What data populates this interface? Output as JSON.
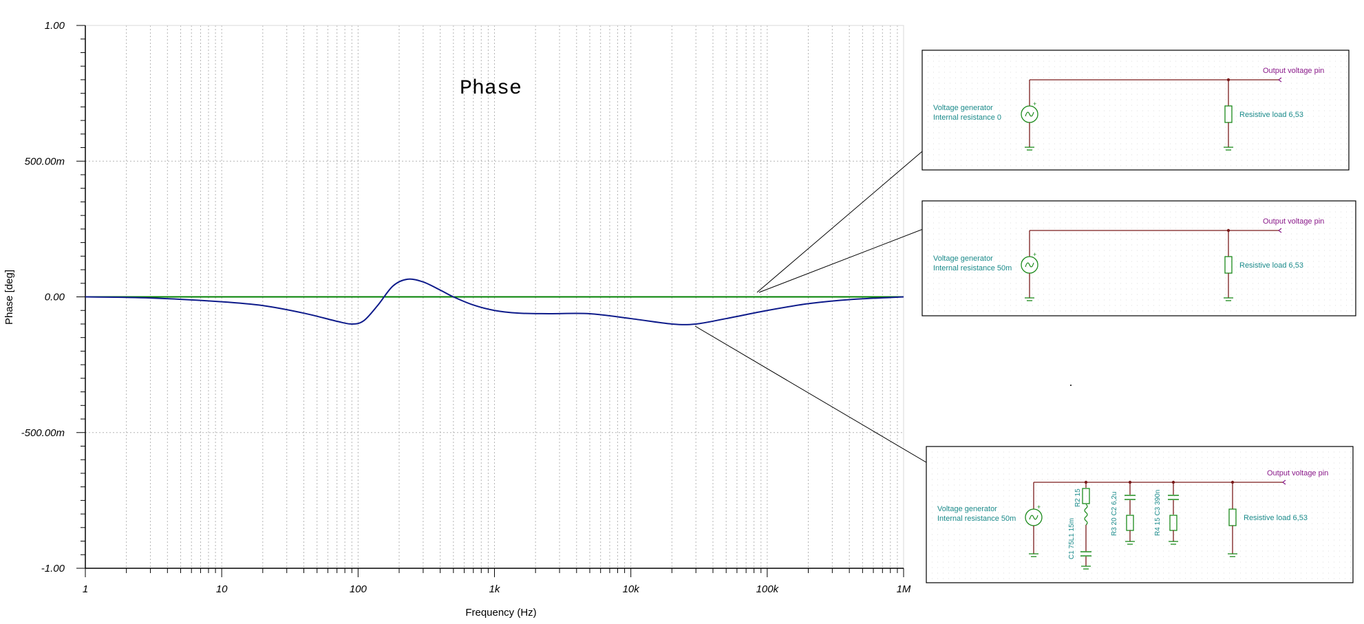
{
  "chart_data": {
    "type": "line",
    "title": "Phase",
    "xlabel": "Frequency (Hz)",
    "ylabel": "Phase [deg]",
    "x_scale": "log",
    "xlim": [
      1,
      1000000
    ],
    "ylim": [
      -1.0,
      1.0
    ],
    "grid": true,
    "x_tick_labels": [
      {
        "value": 1,
        "label": "1"
      },
      {
        "value": 10,
        "label": "10"
      },
      {
        "value": 100,
        "label": "100"
      },
      {
        "value": 1000,
        "label": "1k"
      },
      {
        "value": 10000,
        "label": "10k"
      },
      {
        "value": 100000,
        "label": "100k"
      },
      {
        "value": 1000000,
        "label": "1M"
      }
    ],
    "y_tick_labels": [
      {
        "value": 1.0,
        "label": "1.00"
      },
      {
        "value": 0.5,
        "label": "500.00m"
      },
      {
        "value": 0.0,
        "label": "0.00"
      },
      {
        "value": -0.5,
        "label": "-500.00m"
      },
      {
        "value": -1.0,
        "label": "-1.00"
      }
    ],
    "series": [
      {
        "color": "#008000",
        "x": [
          1,
          1000000
        ],
        "y": [
          0.0,
          0.0
        ]
      },
      {
        "color": "#0d1a8a",
        "x": [
          1,
          3,
          10,
          20,
          40,
          70,
          90,
          110,
          140,
          180,
          230,
          300,
          400,
          500,
          700,
          1000,
          1500,
          2500,
          5000,
          10000,
          20000,
          30000,
          50000,
          100000,
          200000,
          400000,
          1000000
        ],
        "y": [
          0.0,
          -0.004,
          -0.018,
          -0.032,
          -0.06,
          -0.09,
          -0.1,
          -0.088,
          -0.03,
          0.04,
          0.065,
          0.055,
          0.025,
          0.0,
          -0.03,
          -0.05,
          -0.06,
          -0.062,
          -0.062,
          -0.08,
          -0.1,
          -0.1,
          -0.08,
          -0.05,
          -0.025,
          -0.01,
          0.0
        ]
      }
    ]
  },
  "colors": {
    "grid": "#b4b4b4",
    "wire": "#7a1a1a",
    "component": "#1a8a1a",
    "ground": "#1a8a1a",
    "label": "#1a8a8a",
    "pin_label": "#8a1a8a",
    "leader": "#000000"
  },
  "schematics": [
    {
      "gen_label_1": "Voltage generator",
      "gen_label_2": "Internal resistance 0",
      "pin_label": "Output voltage pin",
      "load_label": "Resistive load 6,53"
    },
    {
      "gen_label_1": "Voltage generator",
      "gen_label_2": "Internal resistance 50m",
      "pin_label": "Output voltage pin",
      "load_label": "Resistive load 6,53"
    },
    {
      "gen_label_1": "Voltage generator",
      "gen_label_2": "Internal resistance 50m",
      "pin_label": "Output voltage pin",
      "load_label": "Resistive load 6,53",
      "branch_labels": [
        "R2 15",
        "C1 75L1 15m",
        "R3 20 C2 6,2u",
        "R4 15 C3 390n"
      ]
    }
  ]
}
